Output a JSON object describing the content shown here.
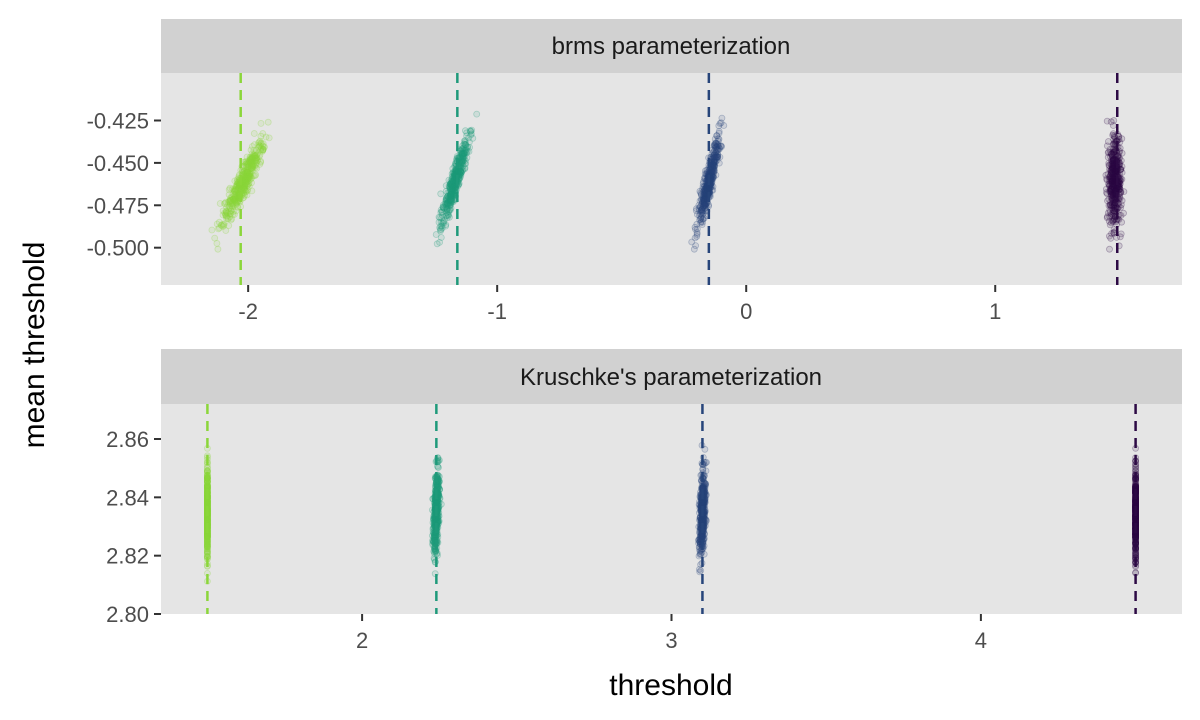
{
  "chart_data": {
    "type": "scatter",
    "xlabel": "threshold",
    "ylabel": "mean threshold",
    "grid": false,
    "legend": "none",
    "colors": [
      "#8bd63a",
      "#1f9a7a",
      "#27457a",
      "#2d0a45"
    ],
    "panels": [
      {
        "title": "brms parameterization",
        "xlim": [
          -2.35,
          1.75
        ],
        "ylim": [
          -0.522,
          -0.397
        ],
        "xticks": [
          -2,
          -1,
          0,
          1
        ],
        "xtick_labels": [
          "-2",
          "-1",
          "0",
          "1"
        ],
        "yticks": [
          -0.425,
          -0.45,
          -0.475,
          -0.5
        ],
        "ytick_labels": [
          "-0.425",
          "-0.450",
          "-0.475",
          "-0.500"
        ],
        "series": [
          {
            "x_center": -2.02,
            "x_spread": 0.045,
            "y_slope": 3.0,
            "y_center": -0.461,
            "y_spread": 0.021,
            "vline": -2.03
          },
          {
            "x_center": -1.17,
            "x_spread": 0.03,
            "y_slope": 2.0,
            "y_center": -0.461,
            "y_spread": 0.021,
            "vline": -1.16
          },
          {
            "x_center": -0.15,
            "x_spread": 0.025,
            "y_slope": 1.5,
            "y_center": -0.461,
            "y_spread": 0.021,
            "vline": -0.15
          },
          {
            "x_center": 1.48,
            "x_spread": 0.04,
            "y_slope": 0.0,
            "y_center": -0.461,
            "y_spread": 0.021,
            "vline": 1.49
          }
        ]
      },
      {
        "title": "Kruschke's parameterization",
        "xlim": [
          1.35,
          4.65
        ],
        "ylim": [
          2.8,
          2.872
        ],
        "xticks": [
          2,
          3,
          4
        ],
        "xtick_labels": [
          "2",
          "3",
          "4"
        ],
        "yticks": [
          2.86,
          2.84,
          2.82,
          2.8
        ],
        "ytick_labels": [
          "2.86",
          "2.84",
          "2.82",
          "2.80"
        ],
        "series": [
          {
            "x_center": 1.5,
            "x_spread": 0.0,
            "y_slope": 0.0,
            "y_center": 2.834,
            "y_spread": 0.012,
            "vline": 1.5
          },
          {
            "x_center": 2.24,
            "x_spread": 0.012,
            "y_slope": 0.35,
            "y_center": 2.835,
            "y_spread": 0.012,
            "vline": 2.24
          },
          {
            "x_center": 3.1,
            "x_spread": 0.012,
            "y_slope": 0.25,
            "y_center": 2.835,
            "y_spread": 0.012,
            "vline": 3.1
          },
          {
            "x_center": 4.5,
            "x_spread": 0.0,
            "y_slope": 0.0,
            "y_center": 2.834,
            "y_spread": 0.012,
            "vline": 4.5
          }
        ]
      }
    ]
  }
}
